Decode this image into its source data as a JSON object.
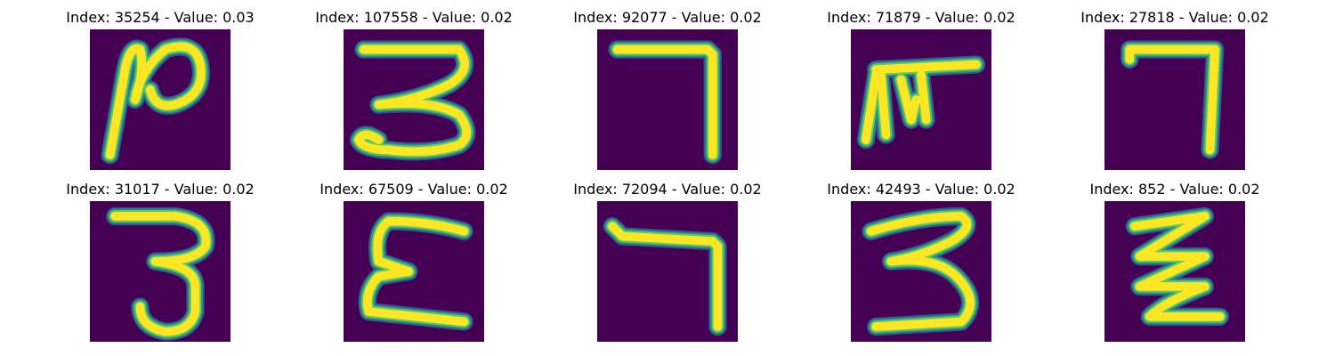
{
  "colors": {
    "background": "#440154",
    "stroke_core": "#fde725",
    "stroke_mid": "#5ec962",
    "stroke_edge": "#21918c",
    "stroke_outer": "#3b528b"
  },
  "panels": [
    {
      "title": "Index: 35254 - Value: 0.03",
      "glyph": "ligature resembling a slanted 'N' with a loop (like 'μ' / 'p')"
    },
    {
      "title": "Index: 107558 - Value: 0.02",
      "glyph": "3"
    },
    {
      "title": "Index: 92077 - Value: 0.02",
      "glyph": "7 (hook)"
    },
    {
      "title": "Index: 71879 - Value: 0.02",
      "glyph": "F-like shape"
    },
    {
      "title": "Index: 27818 - Value: 0.02",
      "glyph": "7 (hook)"
    },
    {
      "title": "Index: 31017 - Value: 0.02",
      "glyph": "3"
    },
    {
      "title": "Index: 67509 - Value: 0.02",
      "glyph": "E"
    },
    {
      "title": "Index: 72094 - Value: 0.02",
      "glyph": "7 (hook)"
    },
    {
      "title": "Index: 42493 - Value: 0.02",
      "glyph": "3"
    },
    {
      "title": "Index: 852 - Value: 0.02",
      "glyph": "Z"
    }
  ]
}
